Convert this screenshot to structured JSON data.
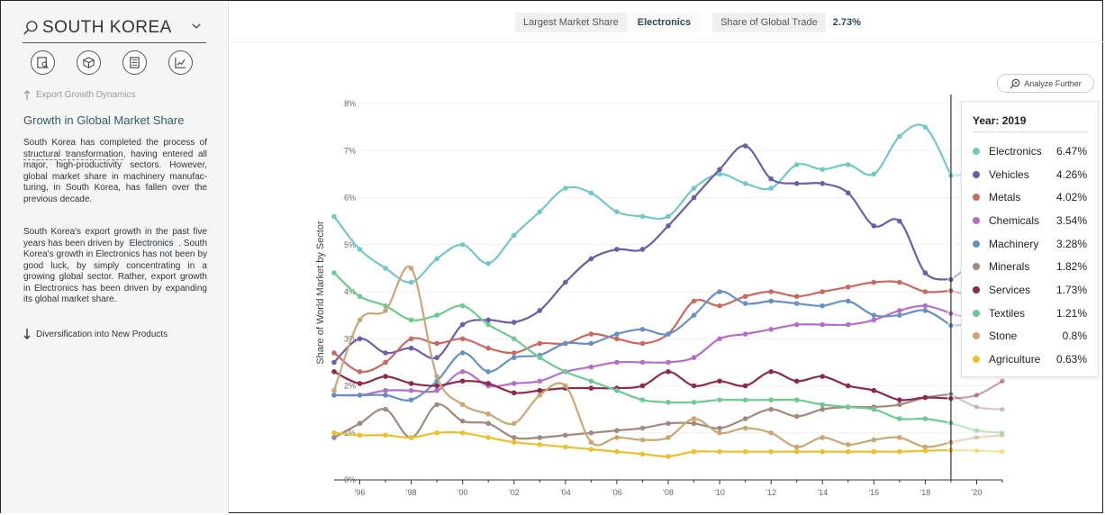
{
  "sidebar": {
    "country": "SOUTH KOREA",
    "prev_link": "Export Growth Dynamics",
    "section_title": "Growth in Global Market Share",
    "para1_a": "South Korea has completed the process of ",
    "para1_link": "structural transformation",
    "para1_b": ", having entered all major, high-productivity sectors. However, global market share in machinery manufac-turing, in South Korea, has fallen over the previous decade.",
    "para2_a": "South Korea's export growth in the past five years has been driven by ",
    "para2_chip": "Electronics",
    "para2_b": " . South Korea's growth in Electronics has not been by good luck, by simply concentrating in a growing global sector. Rather, export growth in Electronics has been driven by expanding its global market share.",
    "next_link": "Diversification into New Products"
  },
  "topbar": {
    "largest_label": "Largest Market Share",
    "largest_value": "Electronics",
    "share_label": "Share of Global Trade",
    "share_value": "2.73%"
  },
  "analyze_label": "Analyze Further",
  "tooltip": {
    "year_label": "Year: 2019",
    "rows": [
      {
        "name": "Electronics",
        "value": "6.47%"
      },
      {
        "name": "Vehicles",
        "value": "4.26%"
      },
      {
        "name": "Metals",
        "value": "4.02%"
      },
      {
        "name": "Chemicals",
        "value": "3.54%"
      },
      {
        "name": "Machinery",
        "value": "3.28%"
      },
      {
        "name": "Minerals",
        "value": "1.82%"
      },
      {
        "name": "Services",
        "value": "1.73%"
      },
      {
        "name": "Textiles",
        "value": "1.21%"
      },
      {
        "name": "Stone",
        "value": "0.8%"
      },
      {
        "name": "Agriculture",
        "value": "0.63%"
      }
    ]
  },
  "chart_data": {
    "type": "line",
    "ylabel": "Share of World Market by Sector",
    "ylim": [
      0,
      8
    ],
    "xlim": [
      1995,
      2021
    ],
    "y_ticks": [
      "0%",
      "1%",
      "2%",
      "3%",
      "4%",
      "5%",
      "6%",
      "7%",
      "8%"
    ],
    "x_ticks": [
      "'96",
      "'98",
      "'00",
      "'02",
      "'04",
      "'06",
      "'08",
      "'10",
      "'12",
      "'14",
      "'16",
      "'18",
      "'20"
    ],
    "x": [
      1995,
      1996,
      1997,
      1998,
      1999,
      2000,
      2001,
      2002,
      2003,
      2004,
      2005,
      2006,
      2007,
      2008,
      2009,
      2010,
      2011,
      2012,
      2013,
      2014,
      2015,
      2016,
      2017,
      2018,
      2019,
      2020,
      2021
    ],
    "highlight_year": 2019,
    "series": [
      {
        "name": "Electronics",
        "color": "#74c7c9",
        "values": [
          5.6,
          4.9,
          4.5,
          4.2,
          4.7,
          5.0,
          4.6,
          5.2,
          5.7,
          6.2,
          6.1,
          5.7,
          5.6,
          5.6,
          6.2,
          6.5,
          6.3,
          6.2,
          6.7,
          6.6,
          6.7,
          6.5,
          7.3,
          7.5,
          6.47,
          6.5,
          6.5
        ]
      },
      {
        "name": "Vehicles",
        "color": "#6d5ea8",
        "values": [
          2.5,
          3.0,
          2.7,
          2.8,
          2.6,
          3.3,
          3.4,
          3.35,
          3.6,
          4.2,
          4.7,
          4.9,
          4.9,
          5.4,
          6.0,
          6.6,
          7.1,
          6.4,
          6.3,
          6.3,
          6.1,
          5.4,
          5.5,
          4.4,
          4.26,
          4.6,
          4.6
        ]
      },
      {
        "name": "Metals",
        "color": "#c96a62",
        "values": [
          2.7,
          2.3,
          2.5,
          3.0,
          2.9,
          3.0,
          2.8,
          2.7,
          2.9,
          2.9,
          3.1,
          3.0,
          2.9,
          3.1,
          3.8,
          3.7,
          3.9,
          4.0,
          3.9,
          4.0,
          4.1,
          4.2,
          4.2,
          4.0,
          4.02,
          3.9,
          3.9
        ]
      },
      {
        "name": "Chemicals",
        "color": "#b36fc8",
        "values": [
          1.8,
          1.8,
          1.9,
          1.9,
          1.9,
          2.3,
          2.0,
          2.05,
          2.1,
          2.3,
          2.4,
          2.5,
          2.5,
          2.5,
          2.6,
          3.0,
          3.1,
          3.2,
          3.3,
          3.3,
          3.3,
          3.4,
          3.6,
          3.7,
          3.54,
          3.4,
          3.3
        ]
      },
      {
        "name": "Machinery",
        "color": "#6890c3",
        "values": [
          1.8,
          1.8,
          1.8,
          1.7,
          2.1,
          2.7,
          2.3,
          2.6,
          2.65,
          2.9,
          2.9,
          3.1,
          3.2,
          3.1,
          3.5,
          4.0,
          3.75,
          3.8,
          3.75,
          3.7,
          3.8,
          3.5,
          3.5,
          3.6,
          3.28,
          3.3,
          3.2
        ]
      },
      {
        "name": "Minerals",
        "color": "#a08a7e",
        "values": [
          0.9,
          1.2,
          1.5,
          0.9,
          1.6,
          1.25,
          1.2,
          0.9,
          0.9,
          0.95,
          1.0,
          1.05,
          1.1,
          1.2,
          1.2,
          1.1,
          1.3,
          1.5,
          1.35,
          1.5,
          1.55,
          1.55,
          1.6,
          1.75,
          1.82,
          1.55,
          1.5
        ]
      },
      {
        "name": "Services",
        "color": "#8a2a4c",
        "values": [
          2.3,
          2.05,
          2.2,
          2.05,
          2.0,
          2.1,
          2.05,
          1.85,
          1.9,
          1.95,
          1.95,
          1.95,
          2.0,
          2.3,
          2.0,
          2.1,
          2.0,
          2.3,
          2.1,
          2.2,
          2.0,
          1.9,
          1.7,
          1.75,
          1.73,
          1.8,
          2.1
        ]
      },
      {
        "name": "Textiles",
        "color": "#6fc993",
        "values": [
          4.4,
          3.9,
          3.7,
          3.4,
          3.5,
          3.7,
          3.3,
          3.0,
          2.6,
          2.3,
          2.1,
          1.9,
          1.7,
          1.65,
          1.65,
          1.7,
          1.7,
          1.7,
          1.7,
          1.6,
          1.55,
          1.5,
          1.3,
          1.3,
          1.21,
          1.05,
          1.0
        ]
      },
      {
        "name": "Stone",
        "color": "#c9a775",
        "values": [
          1.9,
          3.4,
          3.6,
          4.5,
          2.2,
          1.6,
          1.4,
          1.2,
          1.8,
          2.0,
          0.8,
          0.9,
          0.85,
          0.9,
          1.3,
          1.0,
          1.1,
          1.0,
          0.7,
          0.9,
          0.75,
          0.85,
          0.9,
          0.7,
          0.8,
          0.9,
          0.95
        ]
      },
      {
        "name": "Agriculture",
        "color": "#e8c030",
        "values": [
          1.0,
          0.95,
          0.95,
          0.9,
          1.0,
          1.0,
          0.9,
          0.8,
          0.75,
          0.7,
          0.65,
          0.6,
          0.55,
          0.5,
          0.6,
          0.6,
          0.6,
          0.6,
          0.6,
          0.6,
          0.6,
          0.6,
          0.6,
          0.62,
          0.63,
          0.62,
          0.6
        ]
      }
    ]
  }
}
